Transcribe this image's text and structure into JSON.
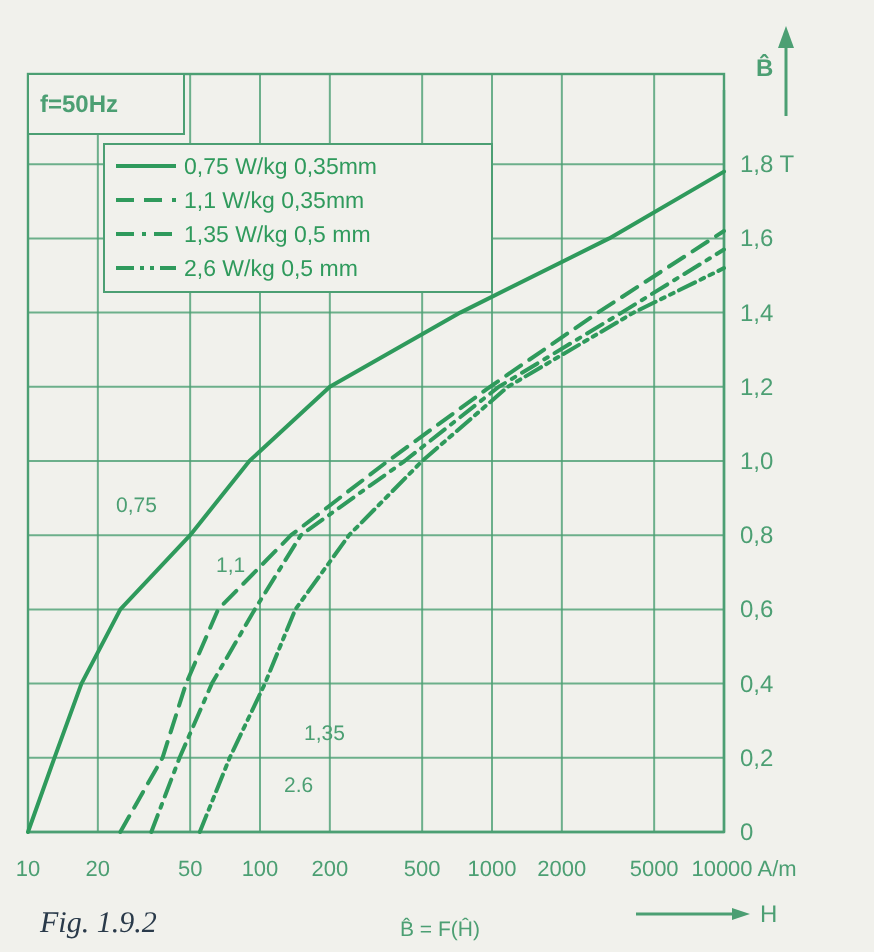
{
  "chart_data": {
    "type": "line",
    "title": "f=50Hz",
    "xlabel": "H",
    "ylabel": "B̂",
    "annotations": [
      "Fig. 1.9.2",
      "B̂ = F(Ĥ)",
      "0,75",
      "1,1",
      "1,35",
      "2.6"
    ],
    "log": "x",
    "xlim": [
      10,
      10000
    ],
    "xticks": [
      10,
      20,
      50,
      100,
      200,
      500,
      1000,
      2000,
      5000,
      {
        "value": 10000,
        "label": "10000 A/m"
      }
    ],
    "ylim": [
      0,
      2.0
    ],
    "yticks": [
      0,
      {
        "value": 0.2,
        "label": "0,2"
      },
      {
        "value": 0.4,
        "label": "0,4"
      },
      {
        "value": 0.6,
        "label": "0,6"
      },
      {
        "value": 0.8,
        "label": "0,8"
      },
      {
        "value": 1.0,
        "label": "1,0"
      },
      {
        "value": 1.2,
        "label": "1,2"
      },
      {
        "value": 1.4,
        "label": "1,4"
      },
      {
        "value": 1.6,
        "label": "1,6"
      },
      {
        "value": 1.8,
        "label": "1,8 T"
      }
    ],
    "grid": true,
    "legend": "top left",
    "marker": "none",
    "series": [
      {
        "name": "0,75 W/kg 0,35mm",
        "color": "#2f9a5c",
        "line_style": "solid",
        "x": [
          10,
          13,
          17,
          25,
          50,
          90,
          200,
          730,
          3200,
          10000
        ],
        "values": [
          0,
          0.2,
          0.4,
          0.6,
          0.8,
          1.0,
          1.2,
          1.4,
          1.6,
          1.78
        ]
      },
      {
        "name": "1,1 W/kg 0,35mm",
        "color": "#2f9a5c",
        "line_style": "dashed",
        "x": [
          25,
          38,
          48,
          66,
          136,
          356,
          980,
          2860,
          10000
        ],
        "values": [
          0,
          0.2,
          0.4,
          0.6,
          0.8,
          1.0,
          1.2,
          1.4,
          1.62
        ]
      },
      {
        "name": "1,35 W/kg 0,5 mm",
        "color": "#2f9a5c",
        "line_style": "dashdot",
        "x": [
          34,
          45,
          62,
          95,
          150,
          420,
          1070,
          3620,
          10000
        ],
        "values": [
          0,
          0.2,
          0.4,
          0.6,
          0.8,
          1.0,
          1.2,
          1.4,
          1.57
        ]
      },
      {
        "name": "2,6 W/kg 0,5 mm",
        "color": "#2f9a5c",
        "line_style": "dashdotdot",
        "x": [
          55,
          74,
          105,
          142,
          242,
          500,
          1170,
          4080,
          10000
        ],
        "values": [
          0,
          0.2,
          0.4,
          0.6,
          0.8,
          1.0,
          1.2,
          1.4,
          1.52
        ]
      }
    ]
  }
}
